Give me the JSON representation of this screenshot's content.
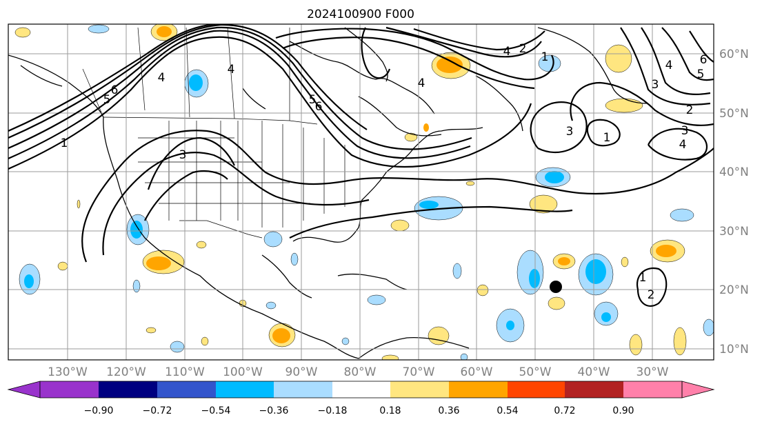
{
  "figure": {
    "title": "2024100900 F000",
    "colors": {
      "neg_090": "#9933cc",
      "neg_072": "#000080",
      "neg_054": "#3355cc",
      "neg_036": "#00bbff",
      "neg_018": "#aaddff",
      "zero": "#ffffff",
      "pos_018": "#ffe680",
      "pos_036": "#ffa500",
      "pos_054": "#ff4500",
      "pos_072": "#b22222",
      "pos_090": "#ff80aa",
      "storm": "#000000"
    }
  },
  "map": {
    "lon_labels": [
      "130°W",
      "120°W",
      "110°W",
      "100°W",
      "90°W",
      "80°W",
      "70°W",
      "60°W",
      "50°W",
      "40°W",
      "30°W"
    ],
    "lat_labels": [
      "60°N",
      "50°N",
      "40°N",
      "30°N",
      "20°N",
      "10°N"
    ],
    "contour_labels": [
      "1",
      "5",
      "6",
      "4",
      "3",
      "5",
      "6",
      "4",
      "4",
      "1",
      "2",
      "4",
      "5",
      "6",
      "3",
      "4",
      "1",
      "2",
      "3",
      "4",
      "3",
      "1",
      "2"
    ],
    "storm_marker": "storm-center"
  },
  "colorbar": {
    "ticks": [
      "−0.90",
      "−0.72",
      "−0.54",
      "−0.36",
      "−0.18",
      "0.18",
      "0.36",
      "0.54",
      "0.72",
      "0.90"
    ]
  }
}
